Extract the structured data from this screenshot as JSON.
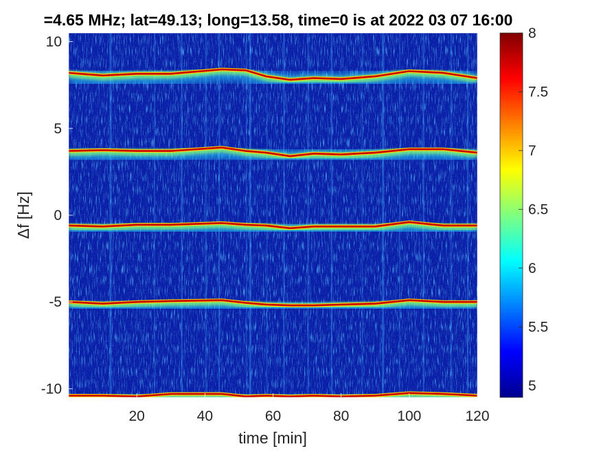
{
  "chart_data": {
    "type": "heatmap",
    "title": "=4.65 MHz;  lat=49.13; long=13.58, time=0 is at 2022 03 07 16:00",
    "xlabel": "time [min]",
    "ylabel": "Δf [Hz]",
    "xlim": [
      0,
      120
    ],
    "ylim": [
      -10.5,
      10.5
    ],
    "xticks": [
      20,
      40,
      60,
      80,
      100,
      120
    ],
    "xtick_labels": [
      "20",
      "40",
      "60",
      "80",
      "100",
      "120"
    ],
    "yticks": [
      10,
      5,
      0,
      -5,
      -10
    ],
    "ytick_labels": [
      "10",
      "5",
      "0",
      "-5",
      "-10"
    ],
    "colorbar": {
      "range": [
        4.9,
        8
      ],
      "ticks": [
        5,
        5.5,
        6,
        6.5,
        7,
        7.5,
        8
      ],
      "tick_labels": [
        "5",
        "5.5",
        "6",
        "6.5",
        "7",
        "7.5",
        "8"
      ],
      "colormap": "jet"
    },
    "series": [
      {
        "center_hz": 8.2,
        "x": [
          0,
          10,
          20,
          30,
          45,
          52,
          58,
          65,
          72,
          80,
          90,
          100,
          110,
          120
        ],
        "y": [
          8.2,
          8.05,
          8.15,
          8.15,
          8.4,
          8.35,
          8.0,
          7.8,
          7.9,
          7.85,
          8.0,
          8.3,
          8.2,
          7.9
        ]
      },
      {
        "center_hz": 3.7,
        "x": [
          0,
          10,
          20,
          30,
          45,
          52,
          58,
          65,
          72,
          80,
          90,
          100,
          110,
          120
        ],
        "y": [
          3.7,
          3.75,
          3.7,
          3.7,
          3.9,
          3.7,
          3.6,
          3.4,
          3.55,
          3.5,
          3.6,
          3.8,
          3.8,
          3.6
        ]
      },
      {
        "center_hz": -0.6,
        "x": [
          0,
          10,
          20,
          30,
          45,
          52,
          58,
          65,
          72,
          80,
          90,
          100,
          110,
          120
        ],
        "y": [
          -0.6,
          -0.65,
          -0.55,
          -0.55,
          -0.45,
          -0.55,
          -0.6,
          -0.75,
          -0.65,
          -0.65,
          -0.65,
          -0.4,
          -0.6,
          -0.6
        ]
      },
      {
        "center_hz": -5.0,
        "x": [
          0,
          10,
          20,
          30,
          45,
          52,
          58,
          65,
          72,
          80,
          90,
          100,
          110,
          120
        ],
        "y": [
          -5.0,
          -5.1,
          -5.0,
          -4.95,
          -4.9,
          -5.05,
          -5.15,
          -5.2,
          -5.2,
          -5.15,
          -5.1,
          -4.9,
          -5.0,
          -5.0
        ]
      },
      {
        "center_hz": -10.4,
        "x": [
          0,
          10,
          20,
          30,
          45,
          52,
          58,
          65,
          72,
          80,
          90,
          100,
          110,
          120
        ],
        "y": [
          -10.4,
          -10.4,
          -10.45,
          -10.3,
          -10.3,
          -10.45,
          -10.4,
          -10.45,
          -10.4,
          -10.45,
          -10.4,
          -10.25,
          -10.3,
          -10.4
        ]
      }
    ],
    "grid": false,
    "legend": "none"
  }
}
